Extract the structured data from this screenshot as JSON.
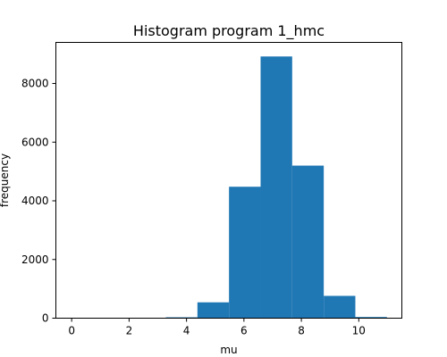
{
  "chart_data": {
    "type": "bar",
    "title": "Histogram program 1_hmc",
    "xlabel": "mu",
    "ylabel": "frequency",
    "xlim": [
      -0.55,
      11.5
    ],
    "ylim": [
      0,
      9400
    ],
    "xticks": [
      0,
      2,
      4,
      6,
      8,
      10
    ],
    "yticks": [
      0,
      2000,
      4000,
      6000,
      8000
    ],
    "bins": [
      {
        "x0": -0.02,
        "x1": 1.08,
        "value": 0
      },
      {
        "x0": 1.08,
        "x1": 2.18,
        "value": 0
      },
      {
        "x0": 2.18,
        "x1": 3.28,
        "value": 1
      },
      {
        "x0": 3.28,
        "x1": 4.38,
        "value": 30
      },
      {
        "x0": 4.38,
        "x1": 5.48,
        "value": 540
      },
      {
        "x0": 5.48,
        "x1": 6.58,
        "value": 4480
      },
      {
        "x0": 6.58,
        "x1": 7.68,
        "value": 8920
      },
      {
        "x0": 7.68,
        "x1": 8.78,
        "value": 5200
      },
      {
        "x0": 8.78,
        "x1": 9.88,
        "value": 760
      },
      {
        "x0": 9.88,
        "x1": 10.98,
        "value": 40
      }
    ],
    "bar_color": "#1f77b4",
    "grid": false,
    "legend": "none"
  }
}
